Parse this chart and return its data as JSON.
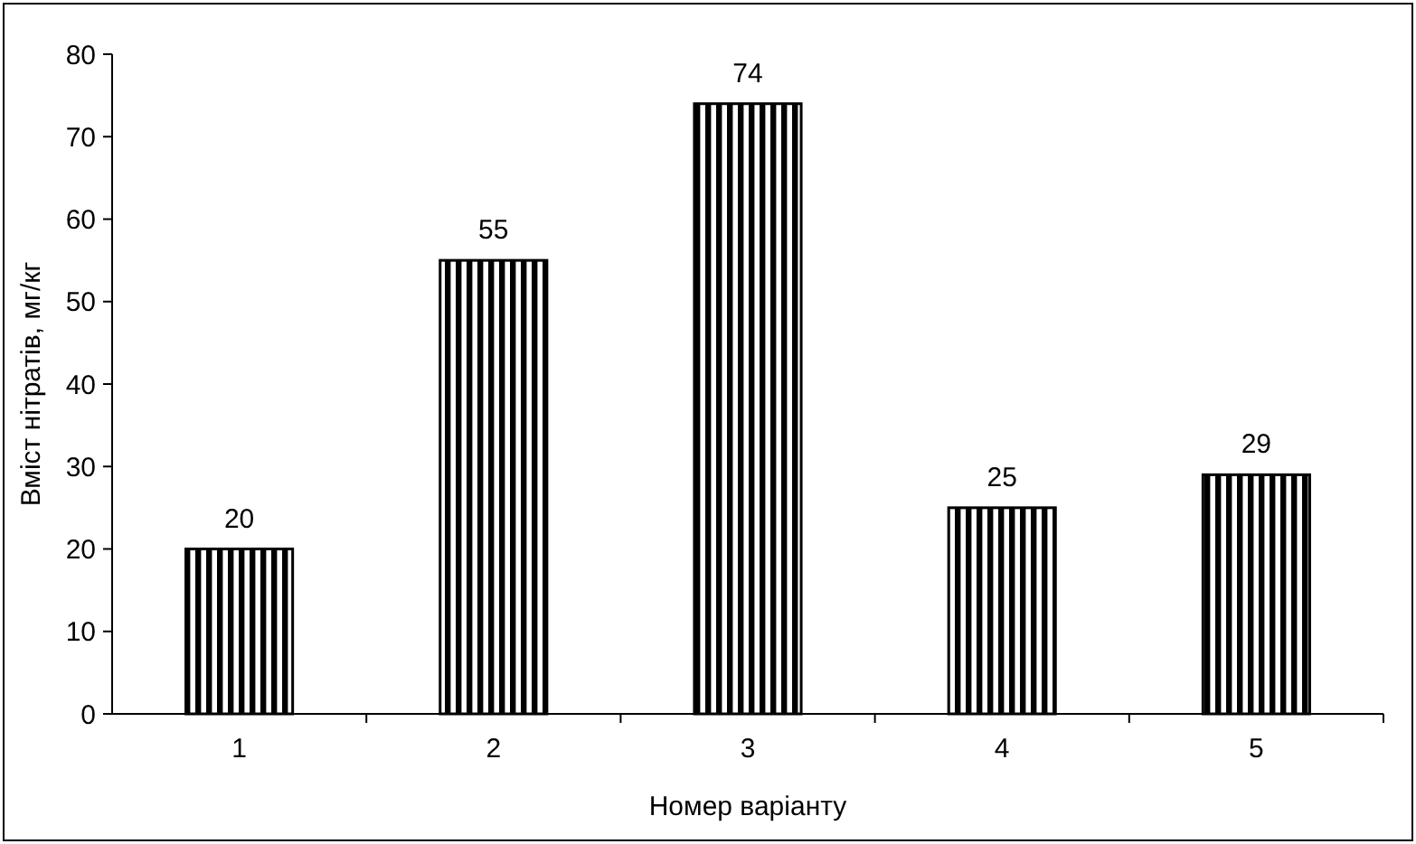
{
  "chart_data": {
    "type": "bar",
    "xlabel": "Номер варіанту",
    "ylabel": "Вміст нітратів, мг/кг",
    "categories": [
      "1",
      "2",
      "3",
      "4",
      "5"
    ],
    "values": [
      20,
      55,
      74,
      25,
      29
    ],
    "color": "#000000",
    "ylim": [
      0,
      80
    ],
    "yticks": [
      0,
      10,
      20,
      30,
      40,
      50,
      60,
      70,
      80
    ],
    "data_labels": true
  }
}
